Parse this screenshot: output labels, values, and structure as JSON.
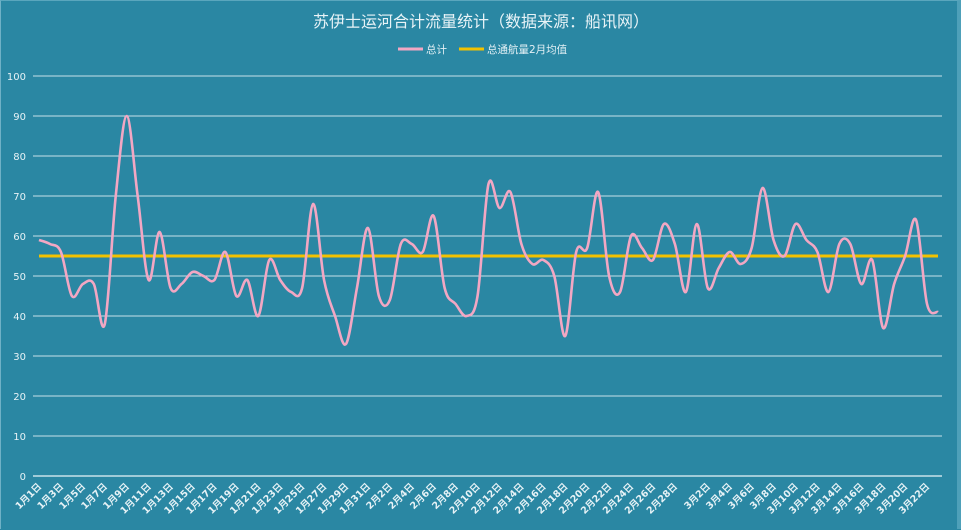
{
  "chart_data": {
    "type": "line",
    "title": "苏伊士运河合计流量统计（数据来源：船讯网）",
    "xlabel": "",
    "ylabel": "",
    "ylim": [
      0,
      100
    ],
    "yticks": [
      0,
      10,
      20,
      30,
      40,
      50,
      60,
      70,
      80,
      90,
      100
    ],
    "grid": true,
    "legend_position": "top",
    "x": [
      "1月1日",
      "1月2日",
      "1月3日",
      "1月4日",
      "1月5日",
      "1月6日",
      "1月7日",
      "1月8日",
      "1月9日",
      "1月10日",
      "1月11日",
      "1月12日",
      "1月13日",
      "1月14日",
      "1月15日",
      "1月16日",
      "1月17日",
      "1月18日",
      "1月19日",
      "1月20日",
      "1月21日",
      "1月22日",
      "1月23日",
      "1月24日",
      "1月25日",
      "1月26日",
      "1月27日",
      "1月28日",
      "1月29日",
      "1月30日",
      "1月31日",
      "2月1日",
      "2月2日",
      "2月3日",
      "2月4日",
      "2月5日",
      "2月6日",
      "2月7日",
      "2月8日",
      "2月9日",
      "2月10日",
      "2月11日",
      "2月12日",
      "2月13日",
      "2月14日",
      "2月15日",
      "2月16日",
      "2月17日",
      "2月18日",
      "2月19日",
      "2月20日",
      "2月21日",
      "2月22日",
      "2月23日",
      "2月24日",
      "2月25日",
      "2月26日",
      "2月27日",
      "2月28日",
      "2月29日",
      "3月1日",
      "3月2日",
      "3月3日",
      "3月4日",
      "3月5日",
      "3月6日",
      "3月7日",
      "3月8日",
      "3月9日",
      "3月10日",
      "3月11日",
      "3月12日",
      "3月13日",
      "3月14日",
      "3月15日",
      "3月16日",
      "3月17日",
      "3月18日",
      "3月19日",
      "3月20日",
      "3月21日",
      "3月22日",
      "3月23日"
    ],
    "xtick_labels_shown": [
      "1月1日",
      "1月3日",
      "1月5日",
      "1月7日",
      "1月9日",
      "1月11日",
      "1月13日",
      "1月15日",
      "1月17日",
      "1月19日",
      "1月21日",
      "1月23日",
      "1月25日",
      "1月27日",
      "1月29日",
      "1月31日",
      "2月2日",
      "2月4日",
      "2月6日",
      "2月8日",
      "2月10日",
      "2月12日",
      "2月14日",
      "2月16日",
      "2月18日",
      "2月20日",
      "2月22日",
      "2月24日",
      "2月26日",
      "2月28日",
      "3月2日",
      "3月4日",
      "3月6日",
      "3月8日",
      "3月10日",
      "3月12日",
      "3月14日",
      "3月16日",
      "3月18日",
      "3月20日",
      "3月22日"
    ],
    "series": [
      {
        "name": "总计",
        "color": "#f2a7c3",
        "values": [
          59,
          58,
          56,
          45,
          48,
          48,
          38,
          70,
          90,
          70,
          49,
          61,
          47,
          48,
          51,
          50,
          49,
          56,
          45,
          49,
          40,
          54,
          49,
          46,
          47,
          68,
          49,
          40,
          33,
          47,
          62,
          45,
          44,
          58,
          58,
          56,
          65,
          47,
          43,
          40,
          45,
          73,
          67,
          71,
          58,
          53,
          54,
          50,
          35,
          56,
          57,
          71,
          50,
          46,
          60,
          57,
          54,
          63,
          58,
          46,
          63,
          47,
          52,
          56,
          53,
          57,
          72,
          59,
          55,
          63,
          59,
          56,
          46,
          58,
          58,
          48,
          54,
          37,
          48,
          55,
          64,
          43,
          41
        ]
      },
      {
        "name": "总通航量2月均值",
        "color": "#f2c200",
        "constant": 55
      }
    ]
  },
  "legend": {
    "series1": "总计",
    "series2": "总通航量2月均值"
  },
  "colors": {
    "background": "#2a87a3",
    "gridline": "#d9ecf2",
    "series1": "#f2a7c3",
    "series2": "#f2c200"
  }
}
